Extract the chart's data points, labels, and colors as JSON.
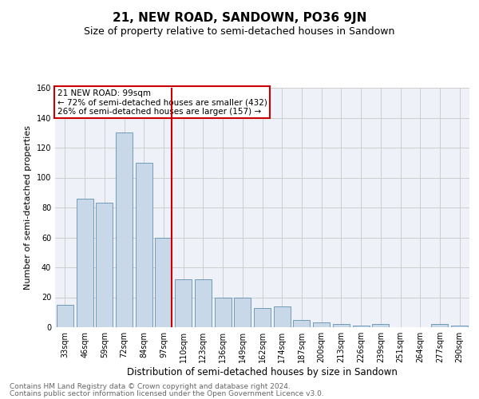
{
  "title": "21, NEW ROAD, SANDOWN, PO36 9JN",
  "subtitle": "Size of property relative to semi-detached houses in Sandown",
  "xlabel": "Distribution of semi-detached houses by size in Sandown",
  "ylabel": "Number of semi-detached properties",
  "footnote1": "Contains HM Land Registry data © Crown copyright and database right 2024.",
  "footnote2": "Contains public sector information licensed under the Open Government Licence v3.0.",
  "annotation_line1": "21 NEW ROAD: 99sqm",
  "annotation_line2": "← 72% of semi-detached houses are smaller (432)",
  "annotation_line3": "26% of semi-detached houses are larger (157) →",
  "categories": [
    "33sqm",
    "46sqm",
    "59sqm",
    "72sqm",
    "84sqm",
    "97sqm",
    "110sqm",
    "123sqm",
    "136sqm",
    "149sqm",
    "162sqm",
    "174sqm",
    "187sqm",
    "200sqm",
    "213sqm",
    "226sqm",
    "239sqm",
    "251sqm",
    "264sqm",
    "277sqm",
    "290sqm"
  ],
  "values": [
    15,
    86,
    83,
    130,
    110,
    60,
    32,
    32,
    20,
    20,
    13,
    14,
    5,
    3,
    2,
    1,
    2,
    0,
    0,
    2,
    1
  ],
  "bar_color": "#c8d8e8",
  "bar_edge_color": "#6090b0",
  "vline_x_index": 5,
  "vline_color": "#cc0000",
  "annotation_box_color": "#cc0000",
  "ylim": [
    0,
    160
  ],
  "yticks": [
    0,
    20,
    40,
    60,
    80,
    100,
    120,
    140,
    160
  ],
  "grid_color": "#c8c8c8",
  "bg_color": "#eef2f8",
  "title_fontsize": 11,
  "subtitle_fontsize": 9,
  "xlabel_fontsize": 8.5,
  "ylabel_fontsize": 8,
  "tick_fontsize": 7,
  "annotation_fontsize": 7.5,
  "footnote_fontsize": 6.5
}
